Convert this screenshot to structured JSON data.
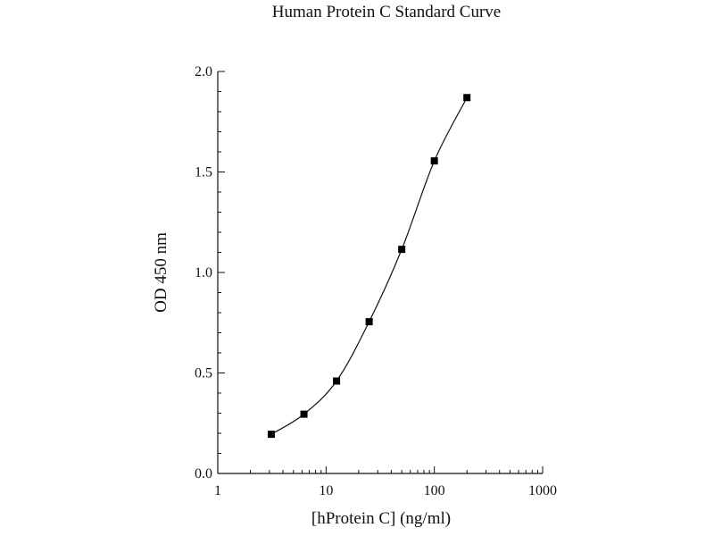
{
  "chart_data": {
    "type": "scatter",
    "title": "Human Protein C Standard Curve",
    "xlabel": "[hProtein C] (ng/ml)",
    "ylabel": "OD 450 nm",
    "x_scale": "log",
    "xlim": [
      1,
      1000
    ],
    "ylim": [
      0,
      2.0
    ],
    "x_ticks": [
      1,
      10,
      100,
      1000
    ],
    "x_tick_labels": [
      "1",
      "10",
      "100",
      "1000"
    ],
    "y_ticks": [
      0,
      0.5,
      1.0,
      1.5,
      2.0
    ],
    "y_tick_labels": [
      "0.0",
      "0.5",
      "1.0",
      "1.5",
      "2.0"
    ],
    "grid": false,
    "legend": "none",
    "series": [
      {
        "x": [
          3.12,
          6.25,
          12.5,
          25,
          50,
          100,
          200
        ],
        "y": [
          0.195,
          0.295,
          0.46,
          0.755,
          1.115,
          1.555,
          1.87
        ],
        "marker": "square",
        "fit": "4PL smooth curve"
      }
    ],
    "colors": {
      "marks": "#000000",
      "axes": "#111111"
    }
  }
}
